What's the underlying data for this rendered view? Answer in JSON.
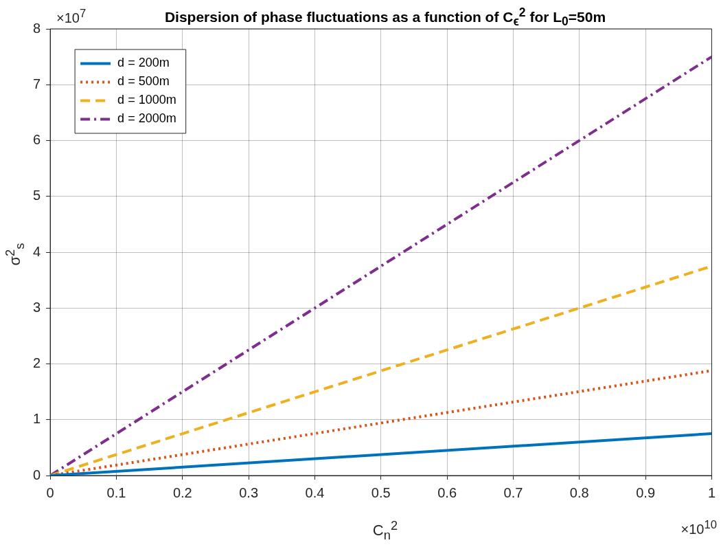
{
  "chart_data": {
    "type": "line",
    "title": "Dispersion of phase fluctuations as a function of C$_{ϵ}$$^{2}$ for L$_{0}$=50m",
    "xlabel": "C$_{n}$$^{2}$",
    "ylabel": "σ$^{2}$$_{s}$",
    "annotations": [
      "×10$^{7}$",
      "×10$^{10}$"
    ],
    "x": [
      0,
      1
    ],
    "series": [
      {
        "name": "d = 200m",
        "color": "#0072bd",
        "line_style": "solid",
        "values": [
          0,
          0.75
        ]
      },
      {
        "name": "d = 500m",
        "color": "#d95319",
        "line_style": "dotted",
        "values": [
          0,
          1.88
        ]
      },
      {
        "name": "d = 1000m",
        "color": "#edb120",
        "line_style": "dashed",
        "values": [
          0,
          3.75
        ]
      },
      {
        "name": "d = 2000m",
        "color": "#7e2f8e",
        "line_style": "dashdot",
        "values": [
          0,
          7.5
        ]
      }
    ],
    "xlim": [
      0,
      1
    ],
    "xticks": [
      0,
      0.1,
      0.2,
      0.3,
      0.4,
      0.5,
      0.6,
      0.7,
      0.8,
      0.9,
      1
    ],
    "ylim": [
      0,
      8
    ],
    "yticks": [
      0,
      1,
      2,
      3,
      4,
      5,
      6,
      7,
      8
    ],
    "grid": true,
    "legend": "top left",
    "marker": "none"
  }
}
